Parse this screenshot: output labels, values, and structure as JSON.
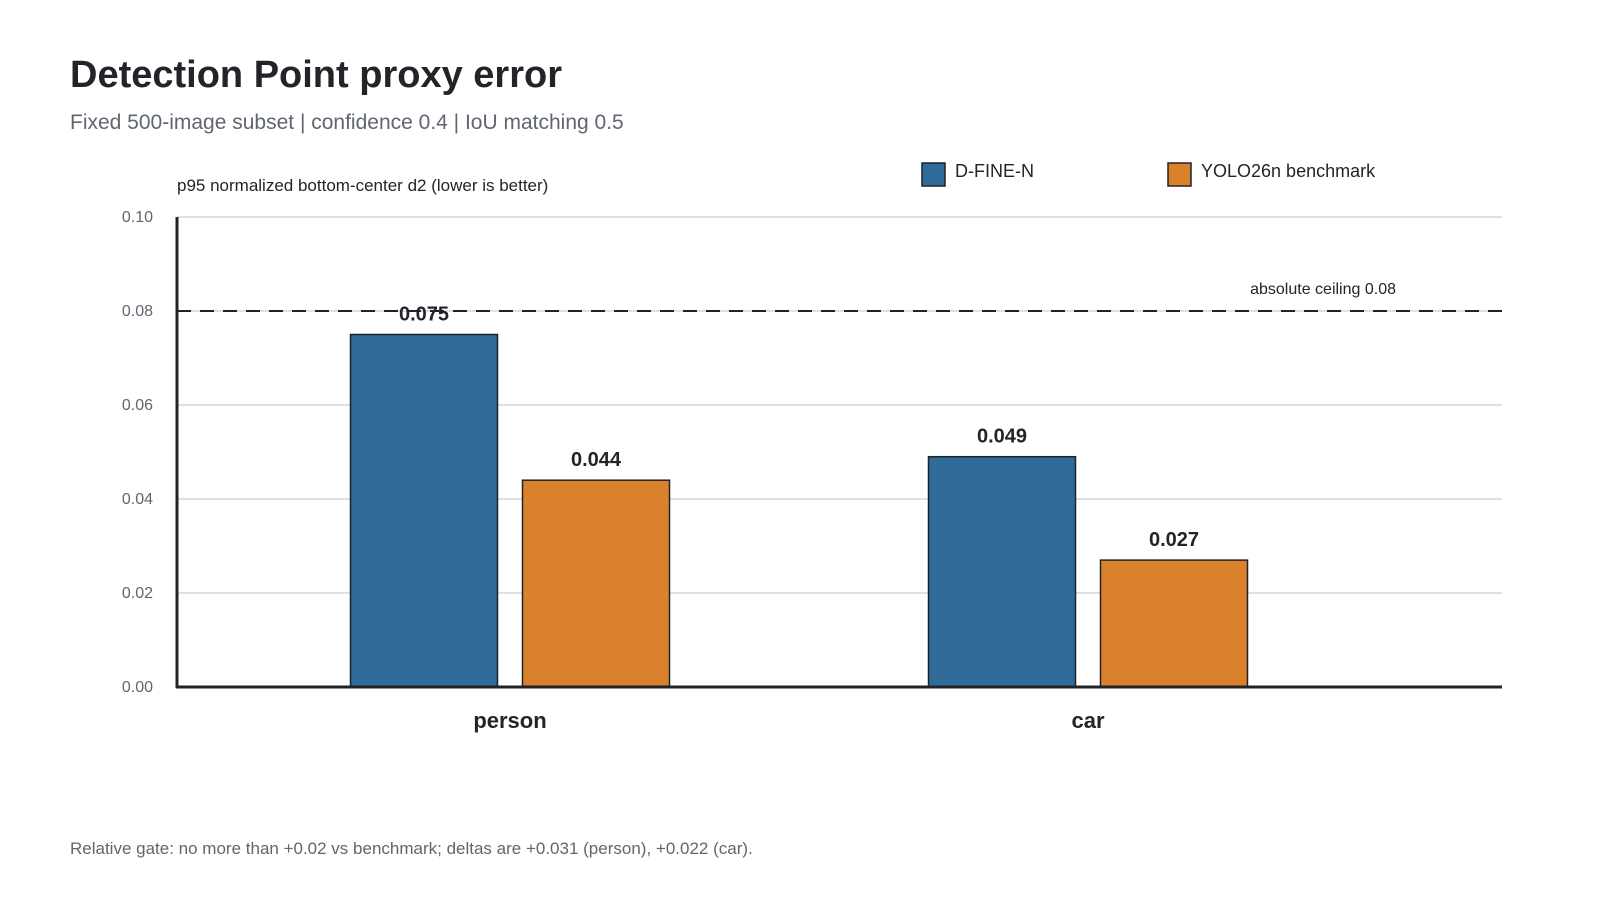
{
  "title": "Detection Point proxy error",
  "subtitle": "Fixed 500-image subset | confidence 0.4 | IoU matching 0.5",
  "footnote": "Relative gate: no more than +0.02 vs benchmark; deltas are +0.031 (person), +0.022 (car).",
  "chart_data": {
    "type": "bar",
    "categories": [
      "person",
      "car"
    ],
    "series": [
      {
        "name": "D-FINE-N",
        "values": [
          0.075,
          0.049
        ],
        "labels": [
          "0.075",
          "0.049"
        ],
        "color": "#2e6b99"
      },
      {
        "name": "YOLO26n benchmark",
        "values": [
          0.044,
          0.027
        ],
        "labels": [
          "0.044",
          "0.027"
        ],
        "color": "#d9822b"
      }
    ],
    "ylabel": "p95 normalized bottom-center d2 (lower is better)",
    "ylim": [
      0,
      0.1
    ],
    "yticks": [
      "0.00",
      "0.02",
      "0.04",
      "0.06",
      "0.08",
      "0.10"
    ],
    "reference_line": {
      "value": 0.08,
      "label": "absolute ceiling 0.08",
      "style": "dashed"
    },
    "grid": true,
    "legend": "top-right"
  }
}
